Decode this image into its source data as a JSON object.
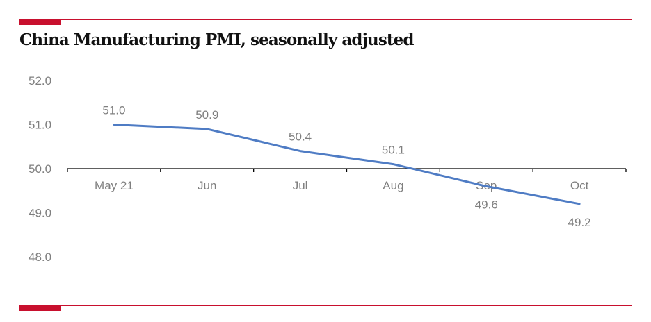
{
  "header": {
    "title": "China Manufacturing PMI, seasonally adjusted"
  },
  "colors": {
    "accent": "#c8102e",
    "line": "#4f7cc4",
    "axis": "#000000",
    "labels": "#7f7f7f"
  },
  "chart_data": {
    "type": "line",
    "title": "China Manufacturing PMI, seasonally adjusted",
    "categories": [
      "May 21",
      "Jun",
      "Jul",
      "Aug",
      "Sep",
      "Oct"
    ],
    "series": [
      {
        "values": [
          51.0,
          50.9,
          50.4,
          50.1,
          49.6,
          49.2
        ]
      }
    ],
    "data_labels": [
      "51.0",
      "50.9",
      "50.4",
      "50.1",
      "49.6",
      "49.2"
    ],
    "y_ticks": [
      "52.0",
      "51.0",
      "50.0",
      "49.0",
      "48.0"
    ],
    "ylim": [
      48.0,
      52.0
    ],
    "x_axis_crosses_at": 50.0,
    "xlabel": "",
    "ylabel": "",
    "grid": false,
    "legend": "none"
  }
}
